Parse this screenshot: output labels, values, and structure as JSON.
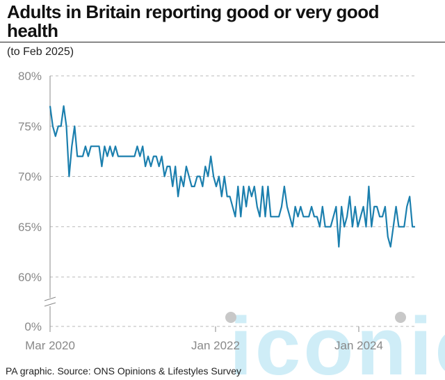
{
  "title": "Adults in Britain reporting good or very good health",
  "subtitle": "(to Feb 2025)",
  "source": "PA graphic. Source: ONS Opinions & Lifestyles Survey",
  "watermark": "iconic",
  "colors": {
    "line": "#1b7fae",
    "grid": "#b9b9b9",
    "tick": "#888888",
    "watermark": "#a8dff2"
  },
  "chart_data": {
    "type": "line",
    "title": "Adults in Britain reporting good or very good health",
    "subtitle": "(to Feb 2025)",
    "xlabel": "",
    "ylabel": "",
    "y_unit": "%",
    "ylim": [
      0,
      80
    ],
    "y_axis_break": true,
    "grid": "horizontal dashed",
    "y_ticks": [
      "0%",
      "60%",
      "65%",
      "70%",
      "75%",
      "80%"
    ],
    "x_ticks": [
      "Mar 2020",
      "Jan 2022",
      "Jan 2024"
    ],
    "x_range": [
      "2020-03",
      "2025-02"
    ],
    "series": [
      {
        "values": [
          77,
          75,
          74,
          75,
          75,
          77,
          75,
          70,
          73,
          75,
          72,
          72,
          72,
          73,
          72,
          73,
          73,
          73,
          73,
          71,
          73,
          72,
          73,
          72,
          73,
          72,
          72,
          72,
          72,
          72,
          72,
          72,
          73,
          72,
          73,
          71,
          72,
          71,
          72,
          72,
          71,
          72,
          70,
          71,
          71,
          69,
          71,
          68,
          70,
          69,
          71,
          70,
          69,
          69,
          70,
          70,
          69,
          71,
          70,
          72,
          70,
          69,
          70,
          68,
          70,
          68,
          68,
          67,
          66,
          69,
          66,
          69,
          67,
          69,
          68,
          69,
          67,
          66,
          69,
          66,
          69,
          66,
          66,
          66,
          66,
          67,
          69,
          67,
          66,
          65,
          67,
          66,
          67,
          66,
          66,
          66,
          67,
          66,
          66,
          65,
          67,
          65,
          65,
          65,
          66,
          67,
          63,
          67,
          65,
          66,
          68,
          65,
          67,
          65,
          66,
          67,
          65,
          69,
          65,
          67,
          67,
          66,
          66,
          67,
          64,
          63,
          65,
          67,
          65,
          65,
          65,
          67,
          68,
          65,
          65
        ]
      }
    ]
  }
}
